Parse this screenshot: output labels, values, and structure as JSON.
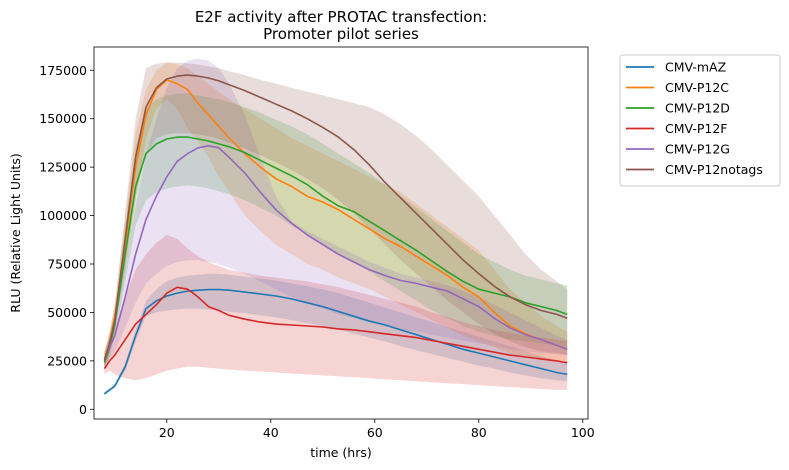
{
  "chart_data": {
    "type": "line",
    "title": "E2F activity after PROTAC transfection:\nPromoter pilot series",
    "title_lines": [
      "E2F activity after PROTAC transfection:",
      "Promoter pilot series"
    ],
    "xlabel": "time (hrs)",
    "ylabel": "RLU (Relative Light Units)",
    "xlim": [
      6,
      101
    ],
    "ylim": [
      -5000,
      187000
    ],
    "xticks": [
      20,
      40,
      60,
      80,
      100
    ],
    "yticks": [
      0,
      25000,
      50000,
      75000,
      100000,
      125000,
      150000,
      175000
    ],
    "grid": false,
    "legend_position": "outside-right",
    "shaded_band": "variability band around each mean line",
    "x": [
      8,
      9,
      10,
      12,
      14,
      16,
      18,
      20,
      22,
      24,
      26,
      28,
      30,
      32,
      35,
      38,
      41,
      44,
      47,
      50,
      53,
      56,
      59,
      62,
      65,
      68,
      71,
      74,
      77,
      80,
      83,
      86,
      89,
      92,
      95,
      97
    ],
    "series": [
      {
        "name": "CMV-mAZ",
        "color": "#1f77b4",
        "values": [
          8000,
          10000,
          12000,
          22000,
          38000,
          52000,
          56000,
          58500,
          60000,
          61000,
          61500,
          61800,
          61800,
          61500,
          60500,
          59500,
          58500,
          57000,
          55000,
          53000,
          50500,
          48000,
          45500,
          43500,
          41000,
          38500,
          36000,
          33500,
          31000,
          29000,
          27000,
          25000,
          23000,
          21000,
          19000,
          18000
        ],
        "lower": [
          7000,
          9000,
          11000,
          20000,
          35000,
          48000,
          50000,
          51000,
          51500,
          52000,
          52000,
          51500,
          51000,
          50500,
          49500,
          48500,
          47500,
          46000,
          44500,
          43000,
          41000,
          39000,
          37000,
          35000,
          32500,
          30500,
          28500,
          26500,
          24500,
          22500,
          21000,
          19000,
          17500,
          16000,
          15000,
          14500
        ],
        "upper": [
          9000,
          11000,
          13000,
          24000,
          41000,
          56000,
          62000,
          66000,
          68000,
          69000,
          69500,
          70000,
          70000,
          69500,
          68500,
          67500,
          66500,
          65000,
          63500,
          62000,
          60000,
          57500,
          55000,
          52500,
          50000,
          47500,
          45000,
          42500,
          40000,
          37500,
          35000,
          32500,
          30000,
          27500,
          25000,
          24000
        ]
      },
      {
        "name": "CMV-P12C",
        "color": "#ff7f0e",
        "values": [
          26000,
          35000,
          48000,
          85000,
          125000,
          152000,
          165000,
          170000,
          168000,
          165000,
          158000,
          152000,
          146000,
          140000,
          132000,
          125000,
          119000,
          115000,
          110000,
          107000,
          103000,
          98000,
          93000,
          88000,
          84000,
          79000,
          74000,
          69000,
          63000,
          58000,
          50000,
          43000,
          39000,
          36000,
          33000,
          31000
        ],
        "lower": [
          22000,
          30000,
          42000,
          72000,
          108000,
          140000,
          155000,
          160000,
          155000,
          145000,
          138000,
          130000,
          120000,
          112000,
          100000,
          92000,
          85000,
          80000,
          75000,
          72000,
          68000,
          65000,
          62000,
          58000,
          54000,
          50000,
          46000,
          42000,
          38000,
          35000,
          32000,
          29000,
          27000,
          25500,
          24500,
          24000
        ],
        "upper": [
          30000,
          40000,
          54000,
          98000,
          142000,
          165000,
          175000,
          179000,
          178000,
          176000,
          172000,
          168000,
          164000,
          160000,
          155000,
          150000,
          145000,
          140000,
          136000,
          132000,
          128000,
          124000,
          120000,
          116000,
          112000,
          106000,
          100000,
          94000,
          88000,
          82000,
          72000,
          62000,
          55000,
          48000,
          43000,
          40000
        ]
      },
      {
        "name": "CMV-P12D",
        "color": "#2ca02c",
        "values": [
          24000,
          32000,
          44000,
          80000,
          115000,
          132000,
          137000,
          139500,
          140500,
          140500,
          139500,
          138500,
          137000,
          135500,
          132500,
          128500,
          124500,
          120500,
          116000,
          110000,
          105000,
          102000,
          97000,
          92000,
          87000,
          82000,
          76500,
          71000,
          66000,
          62000,
          60000,
          58000,
          55000,
          53000,
          51000,
          49000
        ],
        "lower": [
          20000,
          27000,
          38000,
          66000,
          95000,
          108000,
          112000,
          114000,
          115000,
          115500,
          115000,
          114000,
          112500,
          111000,
          108000,
          104000,
          100000,
          95000,
          90000,
          85000,
          80000,
          76000,
          71000,
          66000,
          61000,
          56000,
          51000,
          47000,
          43000,
          40000,
          38000,
          36000,
          35000,
          34000,
          33000,
          32000
        ],
        "upper": [
          28000,
          37000,
          50000,
          94000,
          135000,
          155000,
          160000,
          162000,
          163000,
          163000,
          162000,
          161000,
          160000,
          158500,
          156000,
          153000,
          149500,
          146000,
          142000,
          137000,
          132000,
          127000,
          122000,
          116000,
          110000,
          104000,
          98000,
          92000,
          86000,
          80000,
          76000,
          72000,
          69000,
          67000,
          65000,
          64000
        ]
      },
      {
        "name": "CMV-P12F",
        "color": "#d62728",
        "values": [
          21000,
          25000,
          28000,
          36000,
          44000,
          49000,
          54000,
          60000,
          63000,
          62000,
          58000,
          53000,
          51000,
          48500,
          46500,
          45000,
          44000,
          43500,
          43000,
          42500,
          41500,
          41000,
          40000,
          39000,
          38000,
          37000,
          35500,
          34000,
          32500,
          31000,
          29500,
          28000,
          27000,
          26000,
          25000,
          24000
        ],
        "lower": [
          18000,
          20000,
          18000,
          16000,
          15000,
          16000,
          18000,
          20000,
          21000,
          22000,
          22000,
          21500,
          21000,
          20500,
          20000,
          19500,
          19000,
          18500,
          18000,
          17500,
          17000,
          16500,
          16000,
          15500,
          15000,
          14500,
          14000,
          13500,
          13000,
          12500,
          12000,
          11500,
          11000,
          10500,
          10000,
          10000
        ],
        "upper": [
          24000,
          32000,
          42000,
          58000,
          72000,
          80000,
          86000,
          90000,
          88000,
          83000,
          79000,
          76000,
          74000,
          72000,
          70500,
          69000,
          68000,
          67000,
          66000,
          64500,
          63000,
          61000,
          59000,
          57000,
          55000,
          53000,
          50000,
          47500,
          45000,
          43000,
          41000,
          39500,
          38000,
          37000,
          36000,
          35000
        ]
      },
      {
        "name": "CMV-P12G",
        "color": "#9467bd",
        "values": [
          26000,
          32000,
          38000,
          58000,
          80000,
          98000,
          110000,
          120000,
          128000,
          132000,
          135000,
          136000,
          135000,
          130000,
          122000,
          112000,
          103000,
          96000,
          90000,
          85000,
          80000,
          76000,
          72000,
          69000,
          66500,
          65000,
          63000,
          61000,
          57000,
          53000,
          47000,
          42000,
          38500,
          36000,
          33000,
          31000
        ],
        "lower": [
          22000,
          26000,
          30000,
          42000,
          55000,
          65000,
          70000,
          74000,
          76000,
          77000,
          77000,
          76000,
          75000,
          73000,
          70000,
          66000,
          62000,
          58000,
          55000,
          52000,
          49000,
          47000,
          45000,
          43000,
          41000,
          40000,
          38500,
          37000,
          35500,
          34000,
          32500,
          31000,
          30000,
          29000,
          28500,
          28000
        ],
        "upper": [
          30000,
          38000,
          46000,
          74000,
          105000,
          131000,
          150000,
          166000,
          176000,
          180000,
          181000,
          180000,
          176000,
          168000,
          152000,
          130000,
          110000,
          97000,
          92000,
          88000,
          84000,
          80000,
          76000,
          73000,
          70000,
          68000,
          66000,
          64000,
          61000,
          58000,
          54000,
          50000,
          46000,
          42000,
          38000,
          36000
        ]
      },
      {
        "name": "CMV-P12notags",
        "color": "#8c564b",
        "values": [
          25000,
          34000,
          46000,
          88000,
          130000,
          156000,
          166000,
          170500,
          172000,
          172500,
          172000,
          171000,
          169500,
          167500,
          164500,
          161000,
          157500,
          154000,
          150000,
          145500,
          140500,
          134000,
          126000,
          117000,
          109000,
          101000,
          93000,
          85000,
          77000,
          70000,
          63500,
          58000,
          54000,
          51000,
          49000,
          47000
        ],
        "lower": [
          21000,
          29000,
          40000,
          74000,
          110000,
          132000,
          140000,
          142000,
          142500,
          142500,
          142000,
          141000,
          139500,
          137500,
          134500,
          131000,
          127500,
          123500,
          119000,
          114000,
          108000,
          101000,
          93000,
          85000,
          77000,
          70000,
          63000,
          56000,
          50000,
          44000,
          39000,
          35000,
          32000,
          30000,
          29000,
          28000
        ],
        "upper": [
          29000,
          40000,
          54000,
          102000,
          150000,
          176000,
          178500,
          179000,
          179000,
          178500,
          178000,
          177000,
          176000,
          174500,
          172500,
          170000,
          168000,
          166000,
          164000,
          162000,
          160000,
          158000,
          156000,
          152000,
          147000,
          141000,
          134000,
          126000,
          118000,
          110000,
          100000,
          90000,
          80000,
          72000,
          66000,
          62000
        ]
      }
    ]
  }
}
